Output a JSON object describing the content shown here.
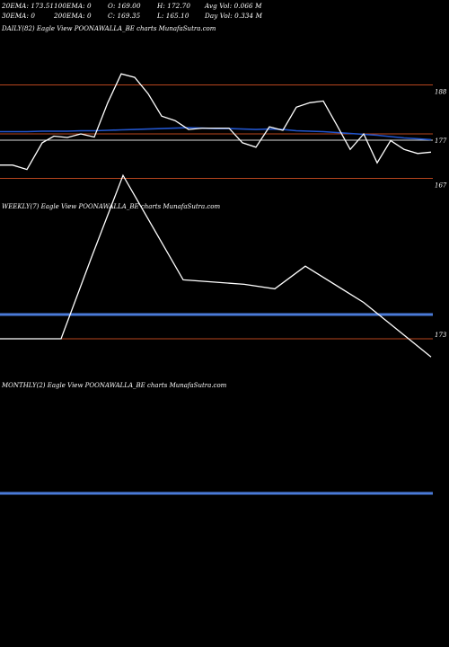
{
  "header": {
    "row1": [
      {
        "label": "20EMA: 173.51"
      },
      {
        "label": "100EMA: 0"
      },
      {
        "label": "O: 169.00"
      },
      {
        "label": "H: 172.70"
      },
      {
        "label": "Avg Vol: 0.066  M"
      }
    ],
    "row2": [
      {
        "label": "30EMA: 0"
      },
      {
        "label": "200EMA: 0"
      },
      {
        "label": "C: 169.35"
      },
      {
        "label": "L: 165.10"
      },
      {
        "label": "Day Vol: 0.334  M"
      }
    ]
  },
  "colors": {
    "background": "#000000",
    "price_line": "#ffffff",
    "ema_line": "#2255cc",
    "level_line": "#b8461e",
    "grid_line": "#dddddd",
    "monthly_band": "#4a7ad8"
  },
  "chart_data": [
    {
      "type": "line",
      "title": "DAILY(82) Eagle   View  POONAWALLA_BE charts MunafaSutra.com",
      "levels": [
        188,
        177,
        167
      ],
      "level_labels": [
        "188",
        "177",
        "167"
      ],
      "series": [
        {
          "name": "price",
          "values": [
            170,
            170,
            169,
            175,
            176.5,
            176.2,
            177,
            176.3,
            184,
            190.5,
            189.7,
            186,
            181,
            180,
            178,
            178.3,
            178.3,
            178.3,
            175,
            174,
            178.6,
            177.8,
            183,
            184,
            184.4,
            179,
            173.5,
            177,
            170.5,
            175.5,
            173.5,
            172.6,
            172.9
          ]
        },
        {
          "name": "20ema",
          "values": [
            177.5,
            177.5,
            177.5,
            177.6,
            177.6,
            177.6,
            177.7,
            177.7,
            177.8,
            177.9,
            178,
            178.1,
            178.2,
            178.3,
            178.4,
            178.3,
            178.2,
            178.2,
            178.1,
            178,
            178.1,
            178,
            177.7,
            177.6,
            177.5,
            177.3,
            177.1,
            176.9,
            176.7,
            176.4,
            176.1,
            175.9,
            175.7
          ]
        }
      ]
    },
    {
      "type": "line",
      "title": "WEEKLY(7) Eagle   View  POONAWALLA_BE charts MunafaSutra.com",
      "level_labels": [
        "173"
      ],
      "series": [
        {
          "name": "price",
          "values": [
            173,
            173,
            182,
            191,
            179.5,
            179,
            178.5,
            181,
            177,
            171
          ]
        }
      ]
    },
    {
      "type": "line",
      "title": "MONTHLY(2) Eagle   View  POONAWALLA_BE charts MunafaSutra.com",
      "series": []
    }
  ]
}
